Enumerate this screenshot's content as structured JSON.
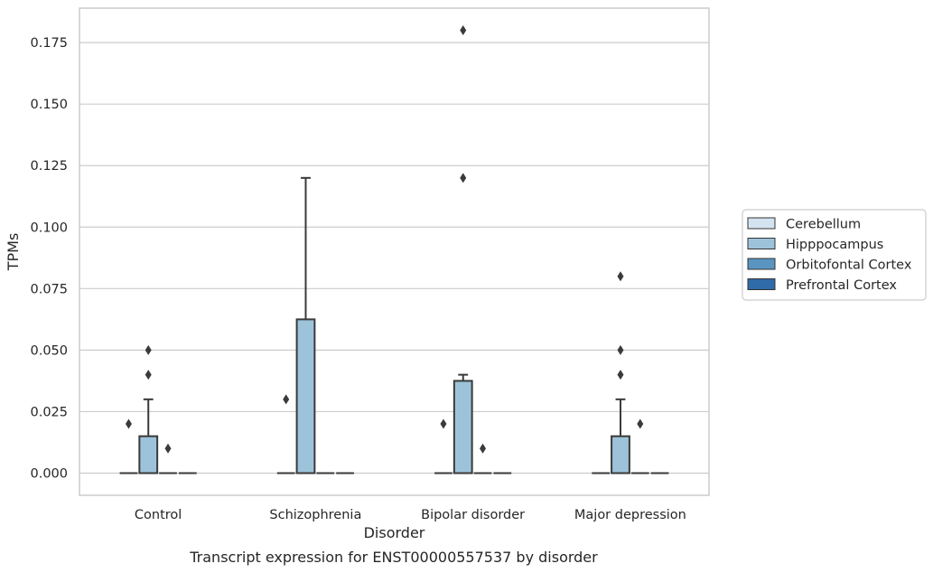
{
  "chart_data": {
    "type": "boxplot",
    "caption": "Transcript expression for ENST00000557537 by disorder",
    "xlabel": "Disorder",
    "ylabel": "TPMs",
    "ylim": [
      -0.009,
      0.189
    ],
    "yticks": [
      "0.000",
      "0.025",
      "0.050",
      "0.075",
      "0.100",
      "0.125",
      "0.150",
      "0.175"
    ],
    "ytick_values": [
      0,
      0.025,
      0.05,
      0.075,
      0.1,
      0.125,
      0.15,
      0.175
    ],
    "grid": true,
    "legend_position": "right",
    "categories": [
      "Control",
      "Schizophrenia",
      "Bipolar disorder",
      "Major depression"
    ],
    "series": [
      {
        "name": "Cerebellum",
        "color": "#d4e3f0",
        "boxes": [
          {
            "q1": 0,
            "median": 0,
            "q3": 0,
            "whisker_low": 0,
            "whisker_high": 0,
            "outliers": [
              0.02
            ]
          },
          {
            "q1": 0,
            "median": 0,
            "q3": 0,
            "whisker_low": 0,
            "whisker_high": 0,
            "outliers": [
              0.03
            ]
          },
          {
            "q1": 0,
            "median": 0,
            "q3": 0,
            "whisker_low": 0,
            "whisker_high": 0,
            "outliers": [
              0.02
            ]
          },
          {
            "q1": 0,
            "median": 0,
            "q3": 0,
            "whisker_low": 0,
            "whisker_high": 0,
            "outliers": []
          }
        ]
      },
      {
        "name": "Hipppocampus",
        "color": "#9dc3da",
        "boxes": [
          {
            "q1": 0,
            "median": 0,
            "q3": 0.015,
            "whisker_low": 0,
            "whisker_high": 0.03,
            "outliers": [
              0.04,
              0.05
            ]
          },
          {
            "q1": 0,
            "median": 0,
            "q3": 0.0625,
            "whisker_low": 0,
            "whisker_high": 0.12,
            "outliers": []
          },
          {
            "q1": 0,
            "median": 0,
            "q3": 0.0375,
            "whisker_low": 0,
            "whisker_high": 0.04,
            "outliers": [
              0.12,
              0.18
            ]
          },
          {
            "q1": 0,
            "median": 0,
            "q3": 0.015,
            "whisker_low": 0,
            "whisker_high": 0.03,
            "outliers": [
              0.04,
              0.05,
              0.08
            ]
          }
        ]
      },
      {
        "name": "Orbitofontal Cortex",
        "color": "#5a95c2",
        "boxes": [
          {
            "q1": 0,
            "median": 0,
            "q3": 0,
            "whisker_low": 0,
            "whisker_high": 0,
            "outliers": [
              0.01
            ]
          },
          {
            "q1": 0,
            "median": 0,
            "q3": 0,
            "whisker_low": 0,
            "whisker_high": 0,
            "outliers": []
          },
          {
            "q1": 0,
            "median": 0,
            "q3": 0,
            "whisker_low": 0,
            "whisker_high": 0,
            "outliers": [
              0.01
            ]
          },
          {
            "q1": 0,
            "median": 0,
            "q3": 0,
            "whisker_low": 0,
            "whisker_high": 0,
            "outliers": [
              0.02
            ]
          }
        ]
      },
      {
        "name": "Prefrontal Cortex",
        "color": "#2f6ba8",
        "boxes": [
          {
            "q1": 0,
            "median": 0,
            "q3": 0,
            "whisker_low": 0,
            "whisker_high": 0,
            "outliers": []
          },
          {
            "q1": 0,
            "median": 0,
            "q3": 0,
            "whisker_low": 0,
            "whisker_high": 0,
            "outliers": []
          },
          {
            "q1": 0,
            "median": 0,
            "q3": 0,
            "whisker_low": 0,
            "whisker_high": 0,
            "outliers": []
          },
          {
            "q1": 0,
            "median": 0,
            "q3": 0,
            "whisker_low": 0,
            "whisker_high": 0,
            "outliers": []
          }
        ]
      }
    ]
  }
}
